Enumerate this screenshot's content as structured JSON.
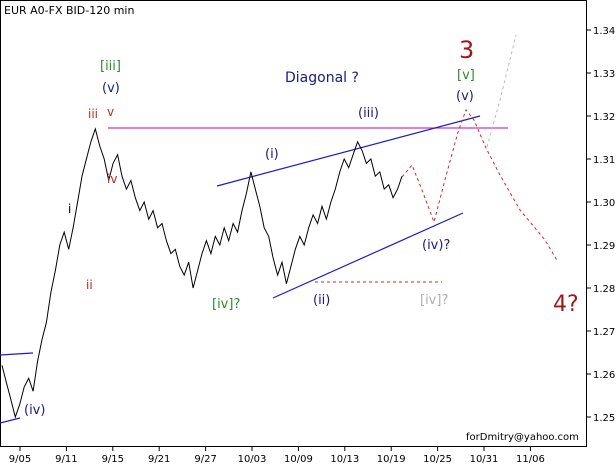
{
  "chart_data": {
    "type": "line",
    "title": "EUR A0-FX BID-120 min",
    "footer": "forDmitry@yahoo.com",
    "x_tick_labels": [
      "9/05",
      "9/11",
      "9/15",
      "9/21",
      "9/27",
      "10/03",
      "10/09",
      "10/13",
      "10/19",
      "10/25",
      "10/31",
      "11/06"
    ],
    "y_tick_labels": [
      "1.34",
      "1.33",
      "1.32",
      "1.31",
      "1.30",
      "1.29",
      "1.28",
      "1.27",
      "1.26",
      "1.25"
    ],
    "ylim": [
      1.245,
      1.345
    ],
    "grid": false,
    "series": [
      {
        "values": [
          1.262,
          1.258,
          1.254,
          1.25,
          1.253,
          1.257,
          1.259,
          1.256,
          1.263,
          1.268,
          1.272,
          1.279,
          1.284,
          1.29,
          1.293,
          1.289,
          1.294,
          1.3,
          1.306,
          1.31,
          1.314,
          1.317,
          1.313,
          1.31,
          1.305,
          1.309,
          1.311,
          1.306,
          1.303,
          1.305,
          1.301,
          1.298,
          1.3,
          1.296,
          1.298,
          1.294,
          1.295,
          1.291,
          1.288,
          1.289,
          1.285,
          1.283,
          1.286,
          1.28,
          1.284,
          1.288,
          1.291,
          1.288,
          1.292,
          1.29,
          1.294,
          1.291,
          1.295,
          1.293,
          1.298,
          1.302,
          1.307,
          1.303,
          1.299,
          1.294,
          1.292,
          1.287,
          1.283,
          1.286,
          1.281,
          1.285,
          1.289,
          1.292,
          1.29,
          1.294,
          1.297,
          1.295,
          1.299,
          1.296,
          1.3,
          1.303,
          1.307,
          1.31,
          1.308,
          1.311,
          1.314,
          1.312,
          1.309,
          1.31,
          1.306,
          1.307,
          1.303,
          1.304,
          1.301,
          1.303,
          1.306
        ]
      }
    ],
    "wave_labels": [
      {
        "text": "[iii]",
        "color": "#2e8b2e"
      },
      {
        "text": "(v)",
        "color": "#1a1a80"
      },
      {
        "text": "iii",
        "color": "#b03020"
      },
      {
        "text": "v",
        "color": "#b03020"
      },
      {
        "text": "iv",
        "color": "#b03020"
      },
      {
        "text": "i",
        "color": "#000000"
      },
      {
        "text": "ii",
        "color": "#b03020"
      },
      {
        "text": "(iv)",
        "color": "#1a1a80"
      },
      {
        "text": "[iv]?",
        "color": "#2e8b2e"
      },
      {
        "text": "(i)",
        "color": "#1a1a80"
      },
      {
        "text": "(ii)",
        "color": "#1a1a80"
      },
      {
        "text": "(iii)",
        "color": "#1a1a80"
      },
      {
        "text": "(iv)?",
        "color": "#1a1a80"
      },
      {
        "text": "[iv]?",
        "color": "#b0b0b0"
      },
      {
        "text": "[v]",
        "color": "#2e8b2e"
      },
      {
        "text": "(v)",
        "color": "#1a1a80"
      },
      {
        "text": "3",
        "color": "#a01818"
      },
      {
        "text": "4?",
        "color": "#a01818"
      },
      {
        "text": "Diagonal ?",
        "color": "#1a1a80"
      }
    ],
    "colors": {
      "price": "#000000",
      "channel": "#1a1acc",
      "resistance": "#cc33cc",
      "forecast": "#dd2222",
      "alternate": "#bbbbbb",
      "axis": "#000000"
    }
  }
}
